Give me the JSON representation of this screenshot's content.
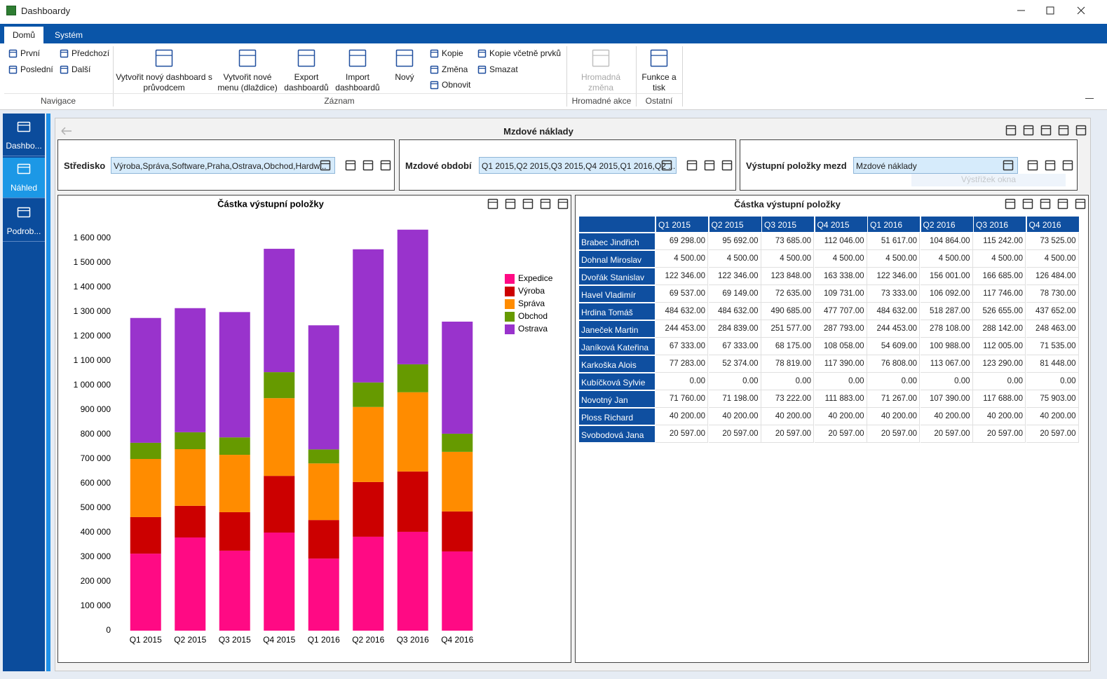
{
  "window_title": "Dashboardy",
  "ribbon": {
    "tabs": [
      "Domů",
      "Systém"
    ],
    "groups": [
      {
        "label": "Navigace",
        "items": [
          "První",
          "Předchozí",
          "Poslední",
          "Další"
        ]
      },
      {
        "label": "Záznam",
        "items": [
          "Vytvořit nový dashboard s průvodcem",
          "Vytvořit nové menu (dlaždice)",
          "Export dashboardů",
          "Import dashboardů",
          "Nový",
          "Kopie",
          "Změna",
          "Obnovit",
          "Kopie včetně prvků",
          "Smazat"
        ]
      },
      {
        "label": "Hromadné akce",
        "items": [
          "Hromadná změna"
        ]
      },
      {
        "label": "Ostatní",
        "items": [
          "Funkce a tisk"
        ]
      }
    ]
  },
  "sidebar": [
    "Dashbo...",
    "Náhled",
    "Podrob..."
  ],
  "dashboard": {
    "title": "Mzdové náklady",
    "filters": [
      {
        "label": "Středisko",
        "value": "Výroba,Správa,Software,Praha,Ostrava,Obchod,Hardw..."
      },
      {
        "label": "Mzdové období",
        "value": "Q1 2015,Q2 2015,Q3 2015,Q4 2015,Q1 2016,Q2 ..."
      },
      {
        "label": "Výstupní položky mezd",
        "value": "Mzdové náklady"
      }
    ],
    "tooltip": "Výstřižek okna"
  },
  "chart_data": {
    "type": "stacked_bar",
    "title": "Částka výstupní položky",
    "categories": [
      "Q1 2015",
      "Q2 2015",
      "Q3 2015",
      "Q4 2015",
      "Q1 2016",
      "Q2 2016",
      "Q3 2016",
      "Q4 2016"
    ],
    "series": [
      {
        "name": "Expedice",
        "color": "#ff0a84",
        "values": [
          314000,
          380000,
          326000,
          400000,
          294000,
          383000,
          403000,
          323000
        ]
      },
      {
        "name": "Výroba",
        "color": "#cc0000",
        "values": [
          149000,
          129000,
          157000,
          231000,
          157000,
          223000,
          246000,
          163000
        ]
      },
      {
        "name": "Správa",
        "color": "#ff8c00",
        "values": [
          237000,
          231000,
          234000,
          317000,
          231000,
          306000,
          323000,
          243000
        ]
      },
      {
        "name": "Obchod",
        "color": "#669a00",
        "values": [
          66000,
          69000,
          71000,
          106000,
          57000,
          100000,
          114000,
          74000
        ]
      },
      {
        "name": "Ostrava",
        "color": "#9933cc",
        "values": [
          509000,
          506000,
          511000,
          503000,
          506000,
          543000,
          549000,
          457000
        ]
      }
    ],
    "ylim": [
      0,
      1700000
    ],
    "yticks": [
      0,
      {
        "value": 100000,
        "label": "100 000"
      },
      {
        "value": 200000,
        "label": "200 000"
      },
      {
        "value": 300000,
        "label": "300 000"
      },
      {
        "value": 400000,
        "label": "400 000"
      },
      {
        "value": 500000,
        "label": "500 000"
      },
      {
        "value": 600000,
        "label": "600 000"
      },
      {
        "value": 700000,
        "label": "700 000"
      },
      {
        "value": 800000,
        "label": "800 000"
      },
      {
        "value": 900000,
        "label": "900 000"
      },
      {
        "value": 1000000,
        "label": "1 000 000"
      },
      {
        "value": 1100000,
        "label": "1 100 000"
      },
      {
        "value": 1200000,
        "label": "1 200 000"
      },
      {
        "value": 1300000,
        "label": "1 300 000"
      },
      {
        "value": 1400000,
        "label": "1 400 000"
      },
      {
        "value": 1500000,
        "label": "1 500 000"
      },
      {
        "value": 1600000,
        "label": "1 600 000"
      }
    ],
    "grid": false,
    "legend": "right"
  },
  "table": {
    "title": "Částka výstupní položky",
    "columns": [
      "Q1 2015",
      "Q2 2015",
      "Q3 2015",
      "Q4 2015",
      "Q1 2016",
      "Q2 2016",
      "Q3 2016",
      "Q4 2016"
    ],
    "rows": [
      {
        "name": "Brabec Jindřich",
        "cells": [
          "69 298.00",
          "95 692.00",
          "73 685.00",
          "112 046.00",
          "51 617.00",
          "104 864.00",
          "115 242.00",
          "73 525.00"
        ]
      },
      {
        "name": "Dohnal Miroslav",
        "cells": [
          "4 500.00",
          "4 500.00",
          "4 500.00",
          "4 500.00",
          "4 500.00",
          "4 500.00",
          "4 500.00",
          "4 500.00"
        ]
      },
      {
        "name": "Dvořák Stanislav",
        "cells": [
          "122 346.00",
          "122 346.00",
          "123 848.00",
          "163 338.00",
          "122 346.00",
          "156 001.00",
          "166 685.00",
          "126 484.00"
        ]
      },
      {
        "name": "Havel Vladimír",
        "cells": [
          "69 537.00",
          "69 149.00",
          "72 635.00",
          "109 731.00",
          "73 333.00",
          "106 092.00",
          "117 746.00",
          "78 730.00"
        ]
      },
      {
        "name": "Hrdina Tomáš",
        "cells": [
          "484 632.00",
          "484 632.00",
          "490 685.00",
          "477 707.00",
          "484 632.00",
          "518 287.00",
          "526 655.00",
          "437 652.00"
        ]
      },
      {
        "name": "Janeček Martin",
        "cells": [
          "244 453.00",
          "284 839.00",
          "251 577.00",
          "287 793.00",
          "244 453.00",
          "278 108.00",
          "288 142.00",
          "248 463.00"
        ]
      },
      {
        "name": "Janíková Kateřina",
        "cells": [
          "67 333.00",
          "67 333.00",
          "68 175.00",
          "108 058.00",
          "54 609.00",
          "100 988.00",
          "112 005.00",
          "71 535.00"
        ]
      },
      {
        "name": "Karkoška Alois",
        "cells": [
          "77 283.00",
          "52 374.00",
          "78 819.00",
          "117 390.00",
          "76 808.00",
          "113 067.00",
          "123 290.00",
          "81 448.00"
        ]
      },
      {
        "name": "Kubíčková Sylvie",
        "cells": [
          "0.00",
          "0.00",
          "0.00",
          "0.00",
          "0.00",
          "0.00",
          "0.00",
          "0.00"
        ]
      },
      {
        "name": "Novotný Jan",
        "cells": [
          "71 760.00",
          "71 198.00",
          "73 222.00",
          "111 883.00",
          "71 267.00",
          "107 390.00",
          "117 688.00",
          "75 903.00"
        ]
      },
      {
        "name": "Ploss Richard",
        "cells": [
          "40 200.00",
          "40 200.00",
          "40 200.00",
          "40 200.00",
          "40 200.00",
          "40 200.00",
          "40 200.00",
          "40 200.00"
        ]
      },
      {
        "name": "Svobodová Jana",
        "cells": [
          "20 597.00",
          "20 597.00",
          "20 597.00",
          "20 597.00",
          "20 597.00",
          "20 597.00",
          "20 597.00",
          "20 597.00"
        ]
      }
    ]
  }
}
